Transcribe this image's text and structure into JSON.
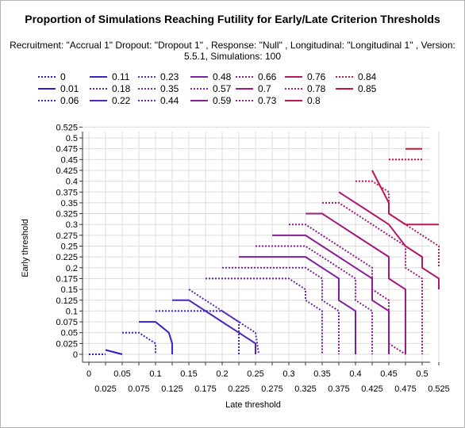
{
  "chart_data": {
    "type": "line",
    "title": "Proportion of Simulations Reaching Futility for Early/Late Criterion Thresholds",
    "subtitle": "Recruitment: \"Accrual 1\" Dropout: \"Dropout 1\" , Response: \"Null\" , Longitudinal: \"Longitudinal 1\" , Version: 5.5.1, Simulations: 100",
    "xlabel": "Late threshold",
    "ylabel": "Early threshold",
    "xlim": [
      0,
      0.525
    ],
    "ylim": [
      0,
      0.525
    ],
    "x_ticks_row1": [
      "0",
      "0.05",
      "0.1",
      "0.15",
      "0.2",
      "0.25",
      "0.3",
      "0.35",
      "0.4",
      "0.45",
      "0.5"
    ],
    "x_ticks_row2": [
      "0.025",
      "0.075",
      "0.125",
      "0.175",
      "0.225",
      "0.275",
      "0.325",
      "0.375",
      "0.425",
      "0.475",
      "0.525"
    ],
    "y_ticks": [
      "0",
      "0.025",
      "0.05",
      "0.075",
      "0.1",
      "0.125",
      "0.15",
      "0.175",
      "0.2",
      "0.225",
      "0.25",
      "0.275",
      "0.3",
      "0.325",
      "0.35",
      "0.375",
      "0.4",
      "0.425",
      "0.45",
      "0.475",
      "0.5",
      "0.525"
    ],
    "grid": true,
    "legend_position": "top",
    "series": [
      {
        "name": "0",
        "color": "#2a1ad0",
        "dash": true,
        "points": [
          [
            0,
            0
          ],
          [
            0.025,
            0
          ]
        ]
      },
      {
        "name": "0.01",
        "color": "#2a1ad0",
        "dash": false,
        "points": [
          [
            0.025,
            0.01
          ],
          [
            0.05,
            0
          ]
        ]
      },
      {
        "name": "0.06",
        "color": "#3b22c8",
        "dash": true,
        "points": [
          [
            0.05,
            0.05
          ],
          [
            0.075,
            0.05
          ],
          [
            0.085,
            0.04
          ],
          [
            0.1,
            0.025
          ],
          [
            0.1,
            0
          ]
        ]
      },
      {
        "name": "0.11",
        "color": "#3a21c8",
        "dash": false,
        "points": [
          [
            0.075,
            0.075
          ],
          [
            0.1,
            0.075
          ],
          [
            0.12,
            0.05
          ],
          [
            0.125,
            0.025
          ],
          [
            0.125,
            0
          ]
        ]
      },
      {
        "name": "0.18",
        "color": "#4b25bf",
        "dash": true,
        "points": [
          [
            0.1,
            0.1
          ],
          [
            0.125,
            0.1
          ],
          [
            0.15,
            0.1
          ],
          [
            0.175,
            0.1
          ],
          [
            0.2,
            0.1
          ],
          [
            0.225,
            0.075
          ],
          [
            0.225,
            0
          ]
        ]
      },
      {
        "name": "0.22",
        "color": "#4d26be",
        "dash": false,
        "points": [
          [
            0.125,
            0.125
          ],
          [
            0.15,
            0.125
          ],
          [
            0.175,
            0.1
          ],
          [
            0.2,
            0.075
          ],
          [
            0.225,
            0.05
          ],
          [
            0.25,
            0.025
          ],
          [
            0.25,
            0
          ]
        ]
      },
      {
        "name": "0.23",
        "color": "#5a27b6",
        "dash": true,
        "points": [
          [
            0.15,
            0.15
          ],
          [
            0.16,
            0.14
          ],
          [
            0.175,
            0.125
          ],
          [
            0.2,
            0.1
          ],
          [
            0.225,
            0.075
          ],
          [
            0.25,
            0.05
          ],
          [
            0.255,
            0
          ]
        ]
      },
      {
        "name": "0.35",
        "color": "#6826ae",
        "dash": true,
        "points": [
          [
            0.175,
            0.175
          ],
          [
            0.2,
            0.175
          ],
          [
            0.225,
            0.175
          ],
          [
            0.25,
            0.175
          ],
          [
            0.275,
            0.175
          ],
          [
            0.3,
            0.175
          ],
          [
            0.325,
            0.15
          ],
          [
            0.325,
            0.125
          ],
          [
            0.35,
            0.1
          ],
          [
            0.35,
            0
          ]
        ]
      },
      {
        "name": "0.44",
        "color": "#7a22a2",
        "dash": true,
        "points": [
          [
            0.2,
            0.2
          ],
          [
            0.225,
            0.2
          ],
          [
            0.25,
            0.2
          ],
          [
            0.275,
            0.2
          ],
          [
            0.3,
            0.2
          ],
          [
            0.325,
            0.2
          ],
          [
            0.35,
            0.175
          ],
          [
            0.35,
            0.125
          ],
          [
            0.375,
            0.1
          ],
          [
            0.375,
            0
          ]
        ]
      },
      {
        "name": "0.48",
        "color": "#7c21a0",
        "dash": false,
        "points": [
          [
            0.225,
            0.225
          ],
          [
            0.25,
            0.225
          ],
          [
            0.275,
            0.225
          ],
          [
            0.3,
            0.225
          ],
          [
            0.325,
            0.225
          ],
          [
            0.35,
            0.2
          ],
          [
            0.375,
            0.175
          ],
          [
            0.375,
            0.125
          ],
          [
            0.4,
            0.1
          ],
          [
            0.4,
            0
          ]
        ]
      },
      {
        "name": "0.57",
        "color": "#881f99",
        "dash": true,
        "points": [
          [
            0.25,
            0.25
          ],
          [
            0.275,
            0.25
          ],
          [
            0.3,
            0.25
          ],
          [
            0.325,
            0.25
          ],
          [
            0.35,
            0.225
          ],
          [
            0.375,
            0.2
          ],
          [
            0.4,
            0.175
          ],
          [
            0.4,
            0.125
          ],
          [
            0.425,
            0.1
          ],
          [
            0.425,
            0
          ]
        ]
      },
      {
        "name": "0.59",
        "color": "#8b1e96",
        "dash": false,
        "points": [
          [
            0.275,
            0.275
          ],
          [
            0.3,
            0.275
          ],
          [
            0.325,
            0.275
          ],
          [
            0.35,
            0.25
          ],
          [
            0.375,
            0.225
          ],
          [
            0.4,
            0.2
          ],
          [
            0.425,
            0.175
          ],
          [
            0.425,
            0.125
          ],
          [
            0.45,
            0.1
          ],
          [
            0.45,
            0
          ]
        ]
      },
      {
        "name": "0.66",
        "color": "#96198a",
        "dash": true,
        "points": [
          [
            0.3,
            0.3
          ],
          [
            0.325,
            0.3
          ],
          [
            0.35,
            0.275
          ],
          [
            0.375,
            0.25
          ],
          [
            0.4,
            0.225
          ],
          [
            0.425,
            0.2
          ],
          [
            0.425,
            0.15
          ],
          [
            0.45,
            0.125
          ],
          [
            0.45,
            0.025
          ],
          [
            0.475,
            0
          ]
        ]
      },
      {
        "name": "0.7",
        "color": "#a11a7c",
        "dash": false,
        "points": [
          [
            0.325,
            0.325
          ],
          [
            0.35,
            0.325
          ],
          [
            0.375,
            0.3
          ],
          [
            0.4,
            0.275
          ],
          [
            0.425,
            0.25
          ],
          [
            0.45,
            0.225
          ],
          [
            0.45,
            0.175
          ],
          [
            0.475,
            0.15
          ],
          [
            0.475,
            0.1
          ],
          [
            0.475,
            0.05
          ],
          [
            0.475,
            0
          ]
        ]
      },
      {
        "name": "0.73",
        "color": "#a81a78",
        "dash": true,
        "points": [
          [
            0.35,
            0.35
          ],
          [
            0.375,
            0.35
          ],
          [
            0.4,
            0.325
          ],
          [
            0.425,
            0.3
          ],
          [
            0.45,
            0.275
          ],
          [
            0.475,
            0.25
          ],
          [
            0.475,
            0.2
          ],
          [
            0.5,
            0.175
          ],
          [
            0.5,
            0.125
          ],
          [
            0.5,
            0.05
          ],
          [
            0.5,
            0
          ]
        ]
      },
      {
        "name": "0.76",
        "color": "#b1176a",
        "dash": false,
        "points": [
          [
            0.375,
            0.375
          ],
          [
            0.4,
            0.35
          ],
          [
            0.425,
            0.325
          ],
          [
            0.45,
            0.3
          ],
          [
            0.475,
            0.25
          ],
          [
            0.5,
            0.225
          ],
          [
            0.5,
            0.2
          ],
          [
            0.525,
            0.175
          ],
          [
            0.525,
            0.15
          ]
        ]
      },
      {
        "name": "0.78",
        "color": "#b8175f",
        "dash": true,
        "points": [
          [
            0.4,
            0.4
          ],
          [
            0.425,
            0.4
          ],
          [
            0.45,
            0.375
          ],
          [
            0.45,
            0.325
          ],
          [
            0.475,
            0.3
          ],
          [
            0.5,
            0.275
          ],
          [
            0.525,
            0.25
          ],
          [
            0.525,
            0.2
          ]
        ]
      },
      {
        "name": "0.8",
        "color": "#c01553",
        "dash": false,
        "points": [
          [
            0.425,
            0.425
          ],
          [
            0.45,
            0.35
          ],
          [
            0.45,
            0.325
          ],
          [
            0.475,
            0.3
          ],
          [
            0.5,
            0.3
          ],
          [
            0.525,
            0.3
          ]
        ]
      },
      {
        "name": "0.84",
        "color": "#c71342",
        "dash": true,
        "points": [
          [
            0.45,
            0.45
          ],
          [
            0.475,
            0.45
          ],
          [
            0.5,
            0.45
          ]
        ]
      },
      {
        "name": "0.85",
        "color": "#d0102f",
        "dash": false,
        "points": [
          [
            0.475,
            0.475
          ],
          [
            0.5,
            0.475
          ]
        ]
      }
    ]
  }
}
